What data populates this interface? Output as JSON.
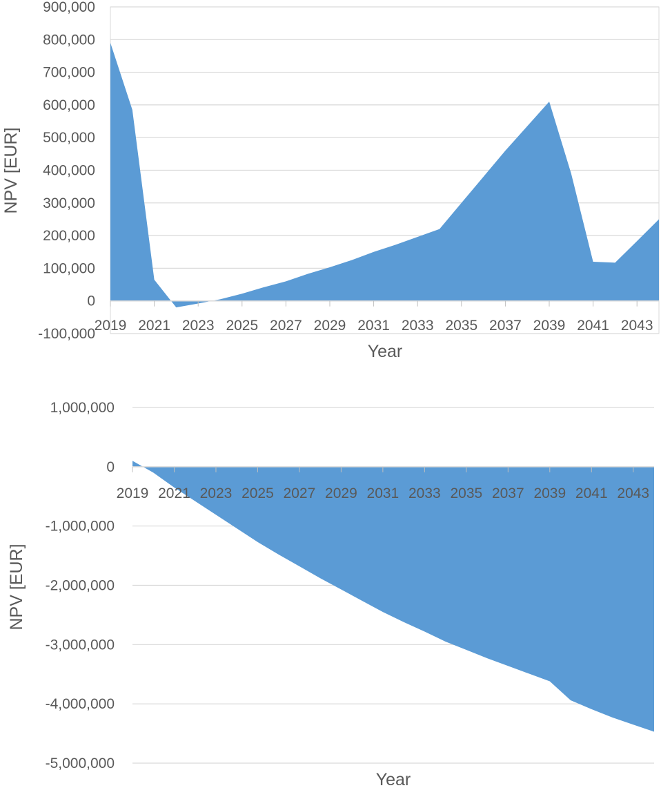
{
  "chart_data": [
    {
      "type": "area",
      "title": "",
      "xlabel": "Year",
      "ylabel": "NPV [EUR]",
      "color": "#5b9bd5",
      "gridline_color": "#d9d9d9",
      "grid": true,
      "xlim": [
        2019,
        2044
      ],
      "ylim": [
        -100000,
        900000
      ],
      "y_ticks": [
        -100000,
        0,
        100000,
        200000,
        300000,
        400000,
        500000,
        600000,
        700000,
        800000,
        900000
      ],
      "y_tick_labels": [
        "-100,000",
        "0",
        "100,000",
        "200,000",
        "300,000",
        "400,000",
        "500,000",
        "600,000",
        "700,000",
        "800,000",
        "900,000"
      ],
      "x_tick_labels": [
        "2019",
        "2021",
        "2023",
        "2025",
        "2027",
        "2029",
        "2031",
        "2033",
        "2035",
        "2037",
        "2039",
        "2041",
        "2043"
      ],
      "x": [
        2019,
        2020,
        2021,
        2022,
        2023,
        2024,
        2025,
        2026,
        2027,
        2028,
        2029,
        2030,
        2031,
        2032,
        2033,
        2034,
        2035,
        2036,
        2037,
        2038,
        2039,
        2040,
        2041,
        2042,
        2043,
        2044
      ],
      "values": [
        790000,
        585000,
        65000,
        -20000,
        -8000,
        5000,
        22000,
        42000,
        60000,
        83000,
        103000,
        125000,
        150000,
        172000,
        196000,
        220000,
        300000,
        380000,
        460000,
        535000,
        610000,
        390000,
        120000,
        117000,
        183000,
        250000
      ]
    },
    {
      "type": "area",
      "title": "",
      "xlabel": "Year",
      "ylabel": "NPV [EUR]",
      "color": "#5b9bd5",
      "gridline_color": "#d9d9d9",
      "grid": true,
      "xlim": [
        2019,
        2044
      ],
      "ylim": [
        -5000000,
        1000000
      ],
      "y_ticks": [
        -5000000,
        -4000000,
        -3000000,
        -2000000,
        -1000000,
        0,
        1000000
      ],
      "y_tick_labels": [
        "-5,000,000",
        "-4,000,000",
        "-3,000,000",
        "-2,000,000",
        "-1,000,000",
        "0",
        "1,000,000"
      ],
      "x_tick_labels": [
        "2019",
        "2021",
        "2023",
        "2025",
        "2027",
        "2029",
        "2031",
        "2033",
        "2035",
        "2037",
        "2039",
        "2041",
        "2043"
      ],
      "x": [
        2019,
        2020,
        2021,
        2022,
        2023,
        2024,
        2025,
        2026,
        2027,
        2028,
        2029,
        2030,
        2031,
        2032,
        2033,
        2034,
        2035,
        2036,
        2037,
        2038,
        2039,
        2040,
        2041,
        2042,
        2043,
        2044
      ],
      "values": [
        100000,
        -100000,
        -350000,
        -580000,
        -810000,
        -1040000,
        -1270000,
        -1480000,
        -1680000,
        -1880000,
        -2070000,
        -2260000,
        -2450000,
        -2620000,
        -2780000,
        -2950000,
        -3090000,
        -3230000,
        -3360000,
        -3490000,
        -3620000,
        -3940000,
        -4090000,
        -4230000,
        -4350000,
        -4470000
      ]
    }
  ]
}
